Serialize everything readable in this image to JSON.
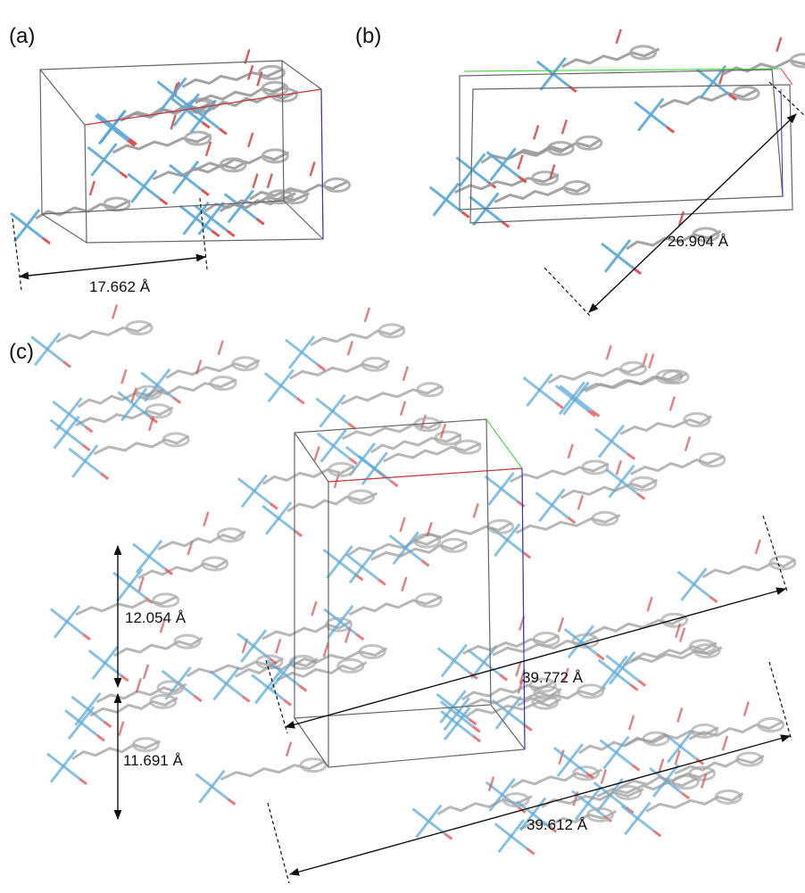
{
  "panels": [
    {
      "label": "(a)",
      "measurements": [
        "17.662 Å"
      ]
    },
    {
      "label": "(b)",
      "measurements": [
        "26.904 Å"
      ]
    },
    {
      "label": "(c)",
      "measurements": [
        "12.054 Å",
        "11.691 Å",
        "39.772 Å",
        "39.612 Å"
      ]
    }
  ]
}
